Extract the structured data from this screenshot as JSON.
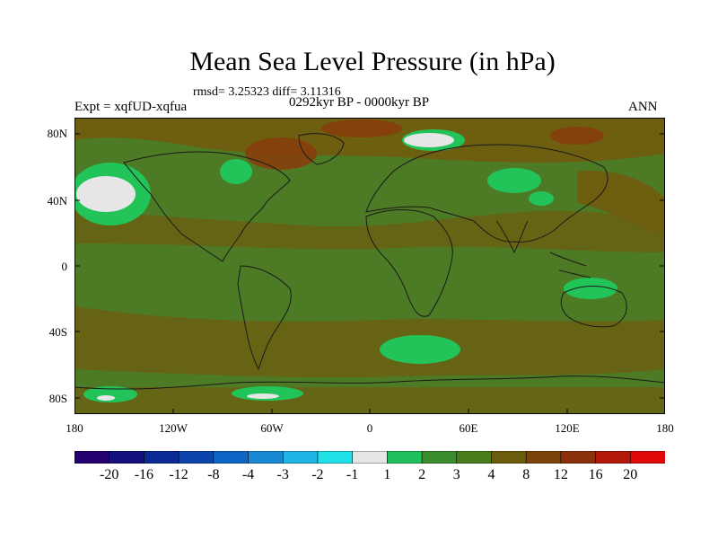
{
  "title": "Mean Sea Level Pressure (in hPa)",
  "stats": "rmsd= 3.25323 diff= 3.11316",
  "period": "0292kyr BP - 0000kyr BP",
  "experiment": "Expt = xqfUD-xqfua",
  "season": "ANN",
  "lat_ticks": [
    "80N",
    "40N",
    "0",
    "40S",
    "80S"
  ],
  "lon_ticks": [
    "180",
    "120W",
    "60W",
    "0",
    "60E",
    "120E",
    "180"
  ],
  "colorbar": {
    "colors": [
      "#24006e",
      "#14107e",
      "#0c2a94",
      "#0c44ac",
      "#0e66c4",
      "#1888d4",
      "#1eb4e6",
      "#20e0e8",
      "#e6e6e6",
      "#20c05c",
      "#3a8c2c",
      "#4a7c1c",
      "#6a5c0c",
      "#7a4408",
      "#8a300a",
      "#b21808",
      "#e00808"
    ],
    "labels": [
      "-20",
      "-16",
      "-12",
      "-8",
      "-4",
      "-3",
      "-2",
      "-1",
      "1",
      "2",
      "3",
      "4",
      "8",
      "12",
      "16",
      "20"
    ]
  },
  "colors": {
    "base_field": "#4d7a24",
    "brown_field": "#6e5e10",
    "light_green": "#22c45a",
    "white_patch": "#e6e6e6",
    "red_brown": "#8a3c0c"
  }
}
